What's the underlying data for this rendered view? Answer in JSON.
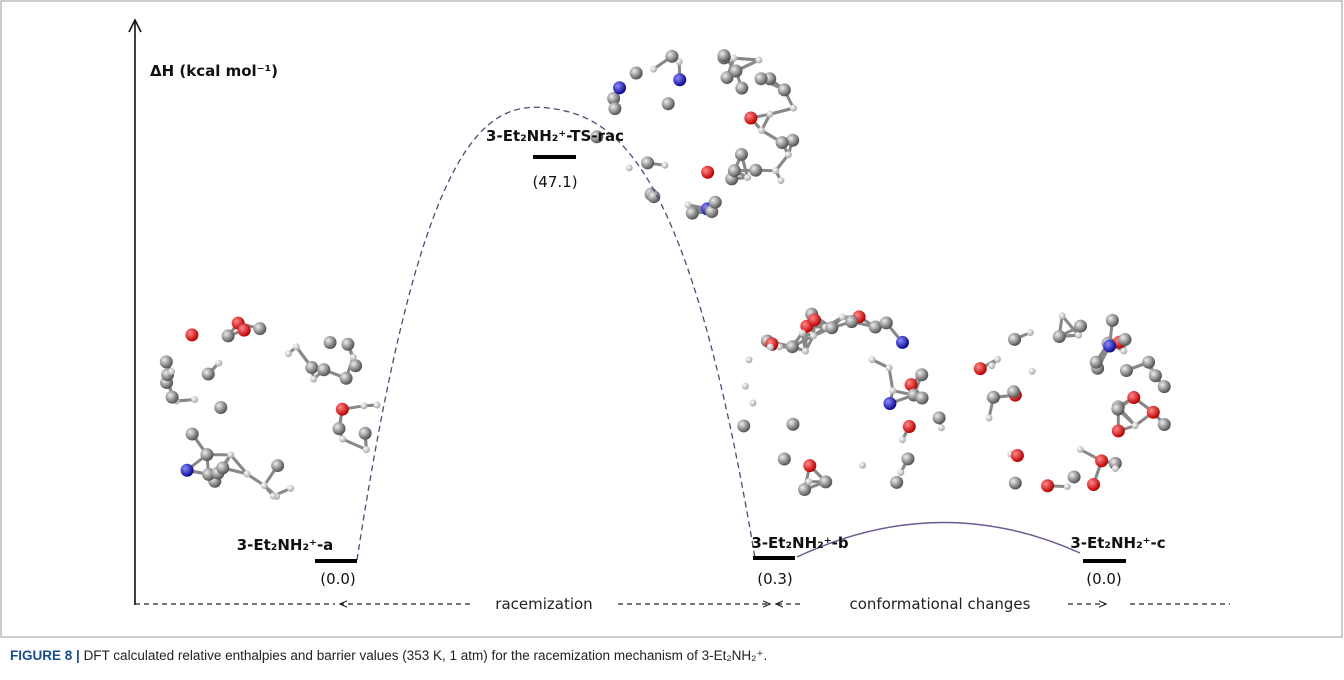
{
  "figure": {
    "axis_label": "ΔH (kcal mol⁻¹)",
    "states": [
      {
        "label": "3-Et₂NH₂⁺-a",
        "energy": "(0.0)"
      },
      {
        "label": "3-Et₂NH₂⁺-TS-rac",
        "energy": "(47.1)"
      },
      {
        "label": "3-Et₂NH₂⁺-b",
        "energy": "(0.3)"
      },
      {
        "label": "3-Et₂NH₂⁺-c",
        "energy": "(0.0)"
      }
    ],
    "process_labels": [
      "racemization",
      "conformational changes"
    ]
  },
  "caption": {
    "prefix": "FIGURE 8 |",
    "text": "DFT calculated relative enthalpies and barrier values (353 K, 1 atm) for the racemization mechanism of 3-Et₂NH₂⁺."
  }
}
